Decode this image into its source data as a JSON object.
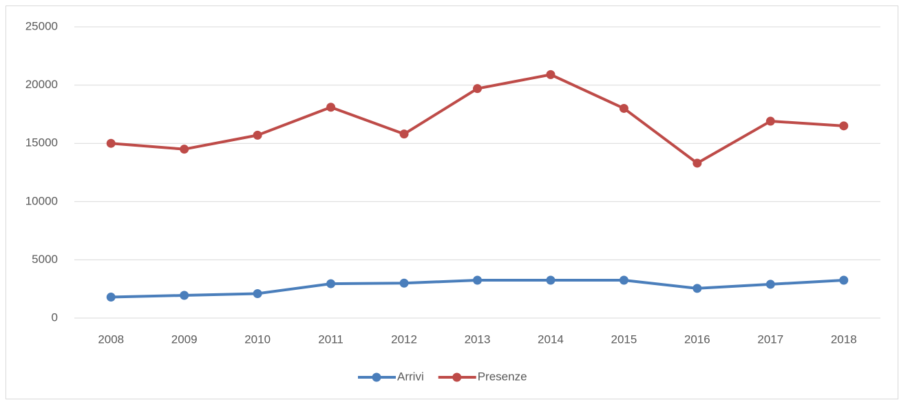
{
  "chart_data": {
    "type": "line",
    "categories": [
      "2008",
      "2009",
      "2010",
      "2011",
      "2012",
      "2013",
      "2014",
      "2015",
      "2016",
      "2017",
      "2018"
    ],
    "series": [
      {
        "name": "Arrivi",
        "color": "#4a7ebb",
        "values": [
          1800,
          1950,
          2100,
          2950,
          3000,
          3250,
          3250,
          3250,
          2550,
          2900,
          3250
        ]
      },
      {
        "name": "Presenze",
        "color": "#be4b48",
        "values": [
          15000,
          14500,
          15700,
          18100,
          15800,
          19700,
          20900,
          18000,
          13300,
          16900,
          16500
        ]
      }
    ],
    "ylim": [
      0,
      25000
    ],
    "yticks": [
      0,
      5000,
      10000,
      15000,
      20000,
      25000
    ],
    "grid": true,
    "legend": "bottom"
  }
}
